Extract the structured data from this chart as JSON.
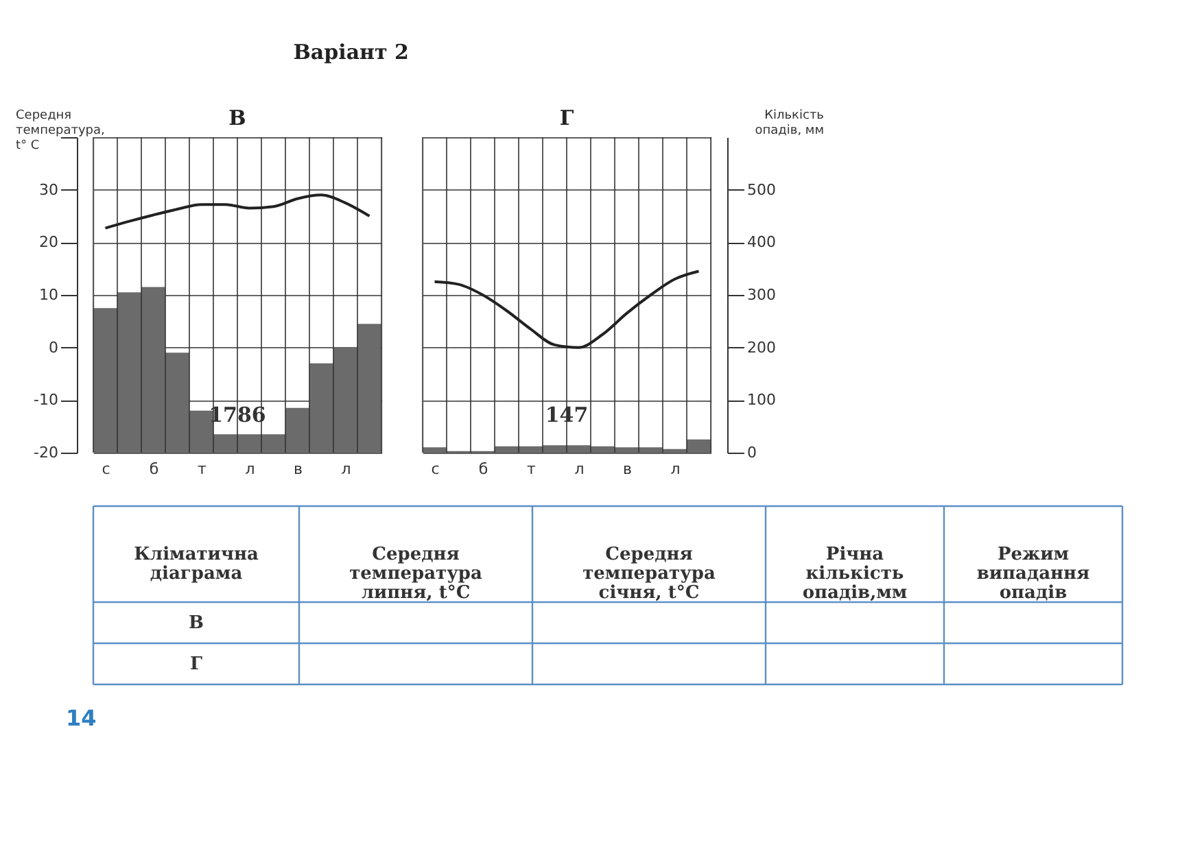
{
  "chart_data": [
    {
      "type": "bar",
      "title": "В",
      "annotations": [
        "Варіант 2",
        "1786"
      ],
      "ylabel": "Середня температура, t° C",
      "categories": [
        "с",
        null,
        "б",
        null,
        "т",
        null,
        "л",
        null,
        "в",
        null,
        "л",
        null
      ],
      "series": [
        {
          "type": "bar",
          "axis": "y2",
          "color": "#6b6b6b",
          "values": [
            275,
            305,
            315,
            190,
            80,
            35,
            35,
            35,
            85,
            170,
            200,
            245
          ]
        },
        {
          "type": "line",
          "color": "#222222",
          "values": [
            22.7,
            24,
            25.2,
            26.3,
            27.2,
            27.2,
            26.5,
            26.8,
            28.3,
            29,
            27.5,
            25
          ]
        }
      ],
      "ylim": [
        -20,
        40
      ],
      "yticks": [
        -20,
        -10,
        0,
        10,
        20,
        30,
        {
          "value": 40,
          "label": null
        }
      ],
      "y2lim": [
        0,
        600
      ],
      "grid": true,
      "legend": false
    },
    {
      "type": "bar",
      "title": "Г",
      "annotations": [
        "147"
      ],
      "y2label": "Кількість опадів, мм",
      "categories": [
        "с",
        null,
        "б",
        null,
        "т",
        null,
        "л",
        null,
        "в",
        null,
        "л",
        null
      ],
      "series": [
        {
          "type": "bar",
          "axis": "y2",
          "color": "#6b6b6b",
          "values": [
            10,
            3,
            3,
            12,
            12,
            14,
            14,
            12,
            10,
            10,
            7,
            25
          ]
        },
        {
          "type": "line",
          "color": "#222222",
          "values": [
            12.5,
            12,
            10,
            7,
            3.5,
            0.5,
            0,
            2.5,
            6.5,
            10,
            13,
            14.5
          ]
        }
      ],
      "ylim": [
        -20,
        40
      ],
      "y2lim": [
        0,
        600
      ],
      "y2ticks": [
        0,
        100,
        200,
        300,
        400,
        500
      ],
      "grid": true,
      "legend": false
    },
    {
      "type": "other",
      "annotations": [
        "Кліматична діаграма",
        "Середня температура липня, t°C",
        "Середня температура січня, t°C",
        "Річна кількість опадів,мм",
        "Режим випадання опадів",
        "В",
        "Г",
        "14"
      ]
    }
  ]
}
